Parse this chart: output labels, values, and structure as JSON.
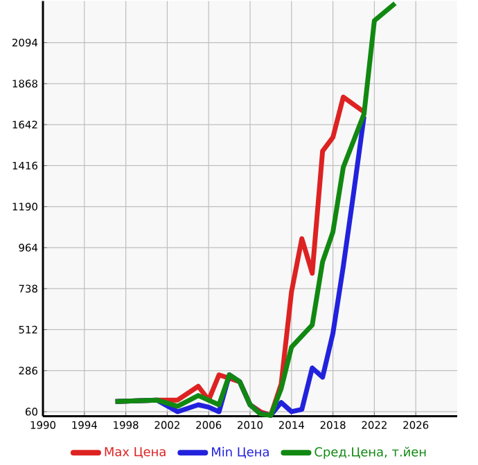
{
  "chart_data": {
    "type": "line",
    "xlim": [
      1990,
      2030
    ],
    "ylim": [
      35,
      2323
    ],
    "xticks": [
      1990,
      1994,
      1998,
      2002,
      2006,
      2010,
      2014,
      2018,
      2022,
      2026
    ],
    "yticks": [
      60,
      286,
      512,
      738,
      964,
      1190,
      1416,
      1642,
      1868,
      2094
    ],
    "grid": true,
    "legend": "bottom",
    "line_style": "solid",
    "marker": "none",
    "series": [
      {
        "name": "Max Цена",
        "color": "#dd2222",
        "x": [
          1997,
          2001,
          2003,
          2005,
          2006,
          2007,
          2009,
          2010,
          2011,
          2012,
          2013,
          2014,
          2015,
          2016,
          2017,
          2018,
          2019,
          2021
        ],
        "values": [
          116,
          124,
          124,
          200,
          124,
          263,
          225,
          98,
          60,
          40,
          212,
          721,
          1013,
          823,
          1496,
          1572,
          1794,
          1712
        ]
      },
      {
        "name": "Min Цена",
        "color": "#2222dd",
        "x": [
          1997,
          2001,
          2003,
          2005,
          2006,
          2007,
          2008,
          2009,
          2010,
          2011,
          2012,
          2013,
          2014,
          2015,
          2016,
          2017,
          2018,
          2019,
          2020,
          2021
        ],
        "values": [
          116,
          124,
          60,
          98,
          85,
          60,
          263,
          225,
          98,
          50,
          40,
          111,
          60,
          73,
          301,
          250,
          492,
          861,
          1267,
          1687
        ]
      },
      {
        "name": "Сред.Цена, т.йен",
        "color": "#118811",
        "x": [
          1997,
          2001,
          2003,
          2005,
          2007,
          2008,
          2009,
          2010,
          2011,
          2012,
          2013,
          2014,
          2016,
          2017,
          2018,
          2019,
          2021,
          2022,
          2024
        ],
        "values": [
          116,
          124,
          90,
          149,
          98,
          263,
          225,
          98,
          47,
          40,
          187,
          416,
          538,
          886,
          1051,
          1407,
          1700,
          2215,
          2310
        ]
      }
    ]
  }
}
